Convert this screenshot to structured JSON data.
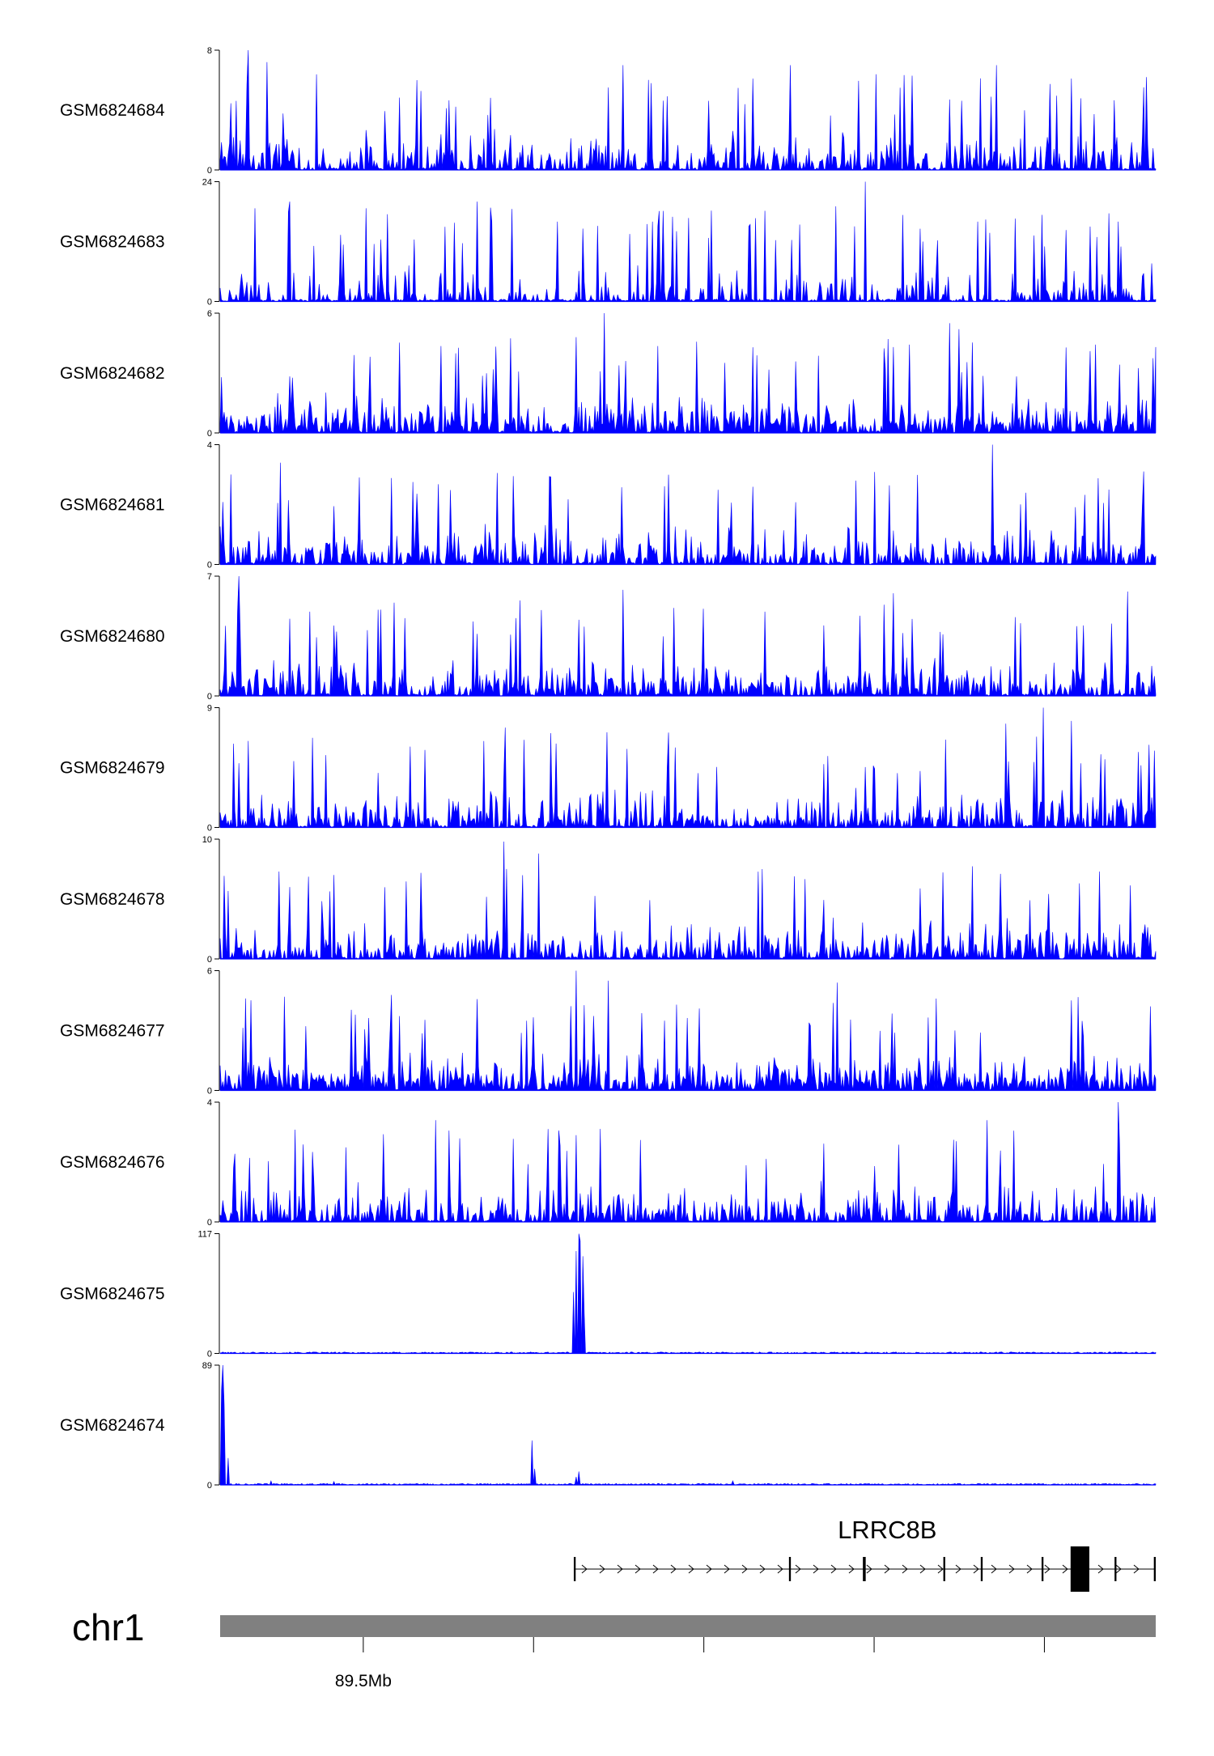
{
  "chart_data": {
    "type": "area",
    "tracks": [
      {
        "name": "GSM6824684",
        "ymax": "8",
        "ymin": "0",
        "max": 8,
        "profile": "noise",
        "peak_prob": 0.05,
        "base_prob": 0.45,
        "seed": 11,
        "spikes": [
          [
            0.03,
            8.1
          ],
          [
            0.05,
            7.2
          ],
          [
            0.21,
            6.0
          ],
          [
            0.43,
            7.0
          ],
          [
            0.46,
            5.8
          ],
          [
            0.57,
            6.1
          ],
          [
            0.61,
            7.0
          ],
          [
            0.74,
            6.3
          ],
          [
            0.83,
            7.0
          ],
          [
            0.91,
            6.1
          ],
          [
            0.99,
            6.2
          ]
        ]
      },
      {
        "name": "GSM6824683",
        "ymax": "24",
        "ymin": "0",
        "max": 24,
        "profile": "sparse",
        "peak_prob": 0.06,
        "base_prob": 0.25,
        "seed": 23,
        "spikes": [
          [
            0.075,
            20
          ],
          [
            0.275,
            20
          ],
          [
            0.29,
            16
          ],
          [
            0.36,
            16
          ],
          [
            0.69,
            24
          ],
          [
            0.81,
            16
          ],
          [
            0.93,
            15
          ],
          [
            0.96,
            16
          ]
        ]
      },
      {
        "name": "GSM6824682",
        "ymax": "6",
        "ymin": "0",
        "max": 6,
        "profile": "noise",
        "peak_prob": 0.05,
        "base_prob": 0.6,
        "seed": 37,
        "spikes": [
          [
            0.38,
            4.8
          ],
          [
            0.41,
            6.0
          ],
          [
            0.78,
            5.5
          ],
          [
            0.79,
            5.2
          ],
          [
            0.72,
            4.3
          ],
          [
            0.93,
            4.1
          ]
        ]
      },
      {
        "name": "GSM6824681",
        "ymax": "4",
        "ymin": "0",
        "max": 4,
        "profile": "noise",
        "peak_prob": 0.05,
        "base_prob": 0.5,
        "seed": 41,
        "spikes": [
          [
            0.065,
            3.4
          ],
          [
            0.68,
            2.8
          ],
          [
            0.826,
            4.0
          ],
          [
            0.95,
            2.5
          ]
        ]
      },
      {
        "name": "GSM6824680",
        "ymax": "7",
        "ymin": "0",
        "max": 7,
        "profile": "noise",
        "peak_prob": 0.05,
        "base_prob": 0.5,
        "seed": 53,
        "spikes": [
          [
            0.02,
            7.0
          ],
          [
            0.43,
            6.2
          ],
          [
            0.72,
            6.0
          ],
          [
            0.97,
            6.1
          ]
        ]
      },
      {
        "name": "GSM6824679",
        "ymax": "9",
        "ymin": "0",
        "max": 9,
        "profile": "noise",
        "peak_prob": 0.05,
        "base_prob": 0.5,
        "seed": 67,
        "spikes": [
          [
            0.03,
            6.5
          ],
          [
            0.305,
            7.5
          ],
          [
            0.84,
            7.8
          ],
          [
            0.88,
            9.0
          ],
          [
            0.91,
            8.0
          ]
        ]
      },
      {
        "name": "GSM6824678",
        "ymax": "10",
        "ymin": "0",
        "max": 10,
        "profile": "noise",
        "peak_prob": 0.05,
        "base_prob": 0.5,
        "seed": 79,
        "spikes": [
          [
            0.063,
            7.3
          ],
          [
            0.303,
            9.8
          ],
          [
            0.34,
            8.8
          ],
          [
            0.58,
            7.5
          ],
          [
            0.94,
            7.3
          ]
        ]
      },
      {
        "name": "GSM6824677",
        "ymax": "6",
        "ymin": "0",
        "max": 6,
        "profile": "noise",
        "peak_prob": 0.05,
        "base_prob": 0.65,
        "seed": 83,
        "spikes": [
          [
            0.38,
            6.0
          ],
          [
            0.415,
            5.5
          ],
          [
            0.66,
            5.4
          ],
          [
            0.765,
            4.6
          ]
        ]
      },
      {
        "name": "GSM6824676",
        "ymax": "4",
        "ymin": "0",
        "max": 4,
        "profile": "noise",
        "peak_prob": 0.05,
        "base_prob": 0.5,
        "seed": 97,
        "spikes": [
          [
            0.23,
            3.4
          ],
          [
            0.35,
            3.1
          ],
          [
            0.38,
            2.9
          ],
          [
            0.82,
            3.4
          ],
          [
            0.96,
            4.0
          ]
        ]
      },
      {
        "name": "GSM6824675",
        "ymax": "117",
        "ymin": "0",
        "max": 117,
        "profile": "flat",
        "seed": 101,
        "spikes": [
          [
            0.378,
            60
          ],
          [
            0.381,
            100
          ],
          [
            0.383,
            117
          ],
          [
            0.385,
            110
          ],
          [
            0.387,
            95
          ],
          [
            0.389,
            40
          ]
        ]
      },
      {
        "name": "GSM6824674",
        "ymax": "89",
        "ymin": "0",
        "max": 89,
        "profile": "flat",
        "seed": 113,
        "spikes": [
          [
            0.001,
            70
          ],
          [
            0.003,
            89
          ],
          [
            0.005,
            60
          ],
          [
            0.008,
            20
          ],
          [
            0.333,
            33
          ],
          [
            0.336,
            12
          ],
          [
            0.38,
            6
          ],
          [
            0.384,
            10
          ],
          [
            0.054,
            3
          ],
          [
            0.548,
            3
          ],
          [
            0.122,
            2.5
          ]
        ]
      }
    ],
    "gene": {
      "name": "LRRC8B",
      "start": 0.378,
      "end": 1.0,
      "strand": "+",
      "exons": [
        [
          0.378,
          0.38
        ],
        [
          0.608,
          0.61
        ],
        [
          0.687,
          0.69
        ],
        [
          0.773,
          0.775
        ],
        [
          0.813,
          0.815
        ],
        [
          0.878,
          0.88
        ],
        [
          0.909,
          0.929
        ],
        [
          0.956,
          0.958
        ],
        [
          0.998,
          1.0
        ]
      ]
    },
    "chromosome": "chr1",
    "x_ticks": [
      {
        "pos": 0.153,
        "label": "89.5Mb"
      },
      {
        "pos": 0.335,
        "label": ""
      },
      {
        "pos": 0.517,
        "label": ""
      },
      {
        "pos": 0.699,
        "label": ""
      },
      {
        "pos": 0.881,
        "label": ""
      }
    ],
    "colors": {
      "signal": "#0000ff",
      "gene": "#000000",
      "ideogram": "#808080",
      "axis": "#000000"
    }
  }
}
